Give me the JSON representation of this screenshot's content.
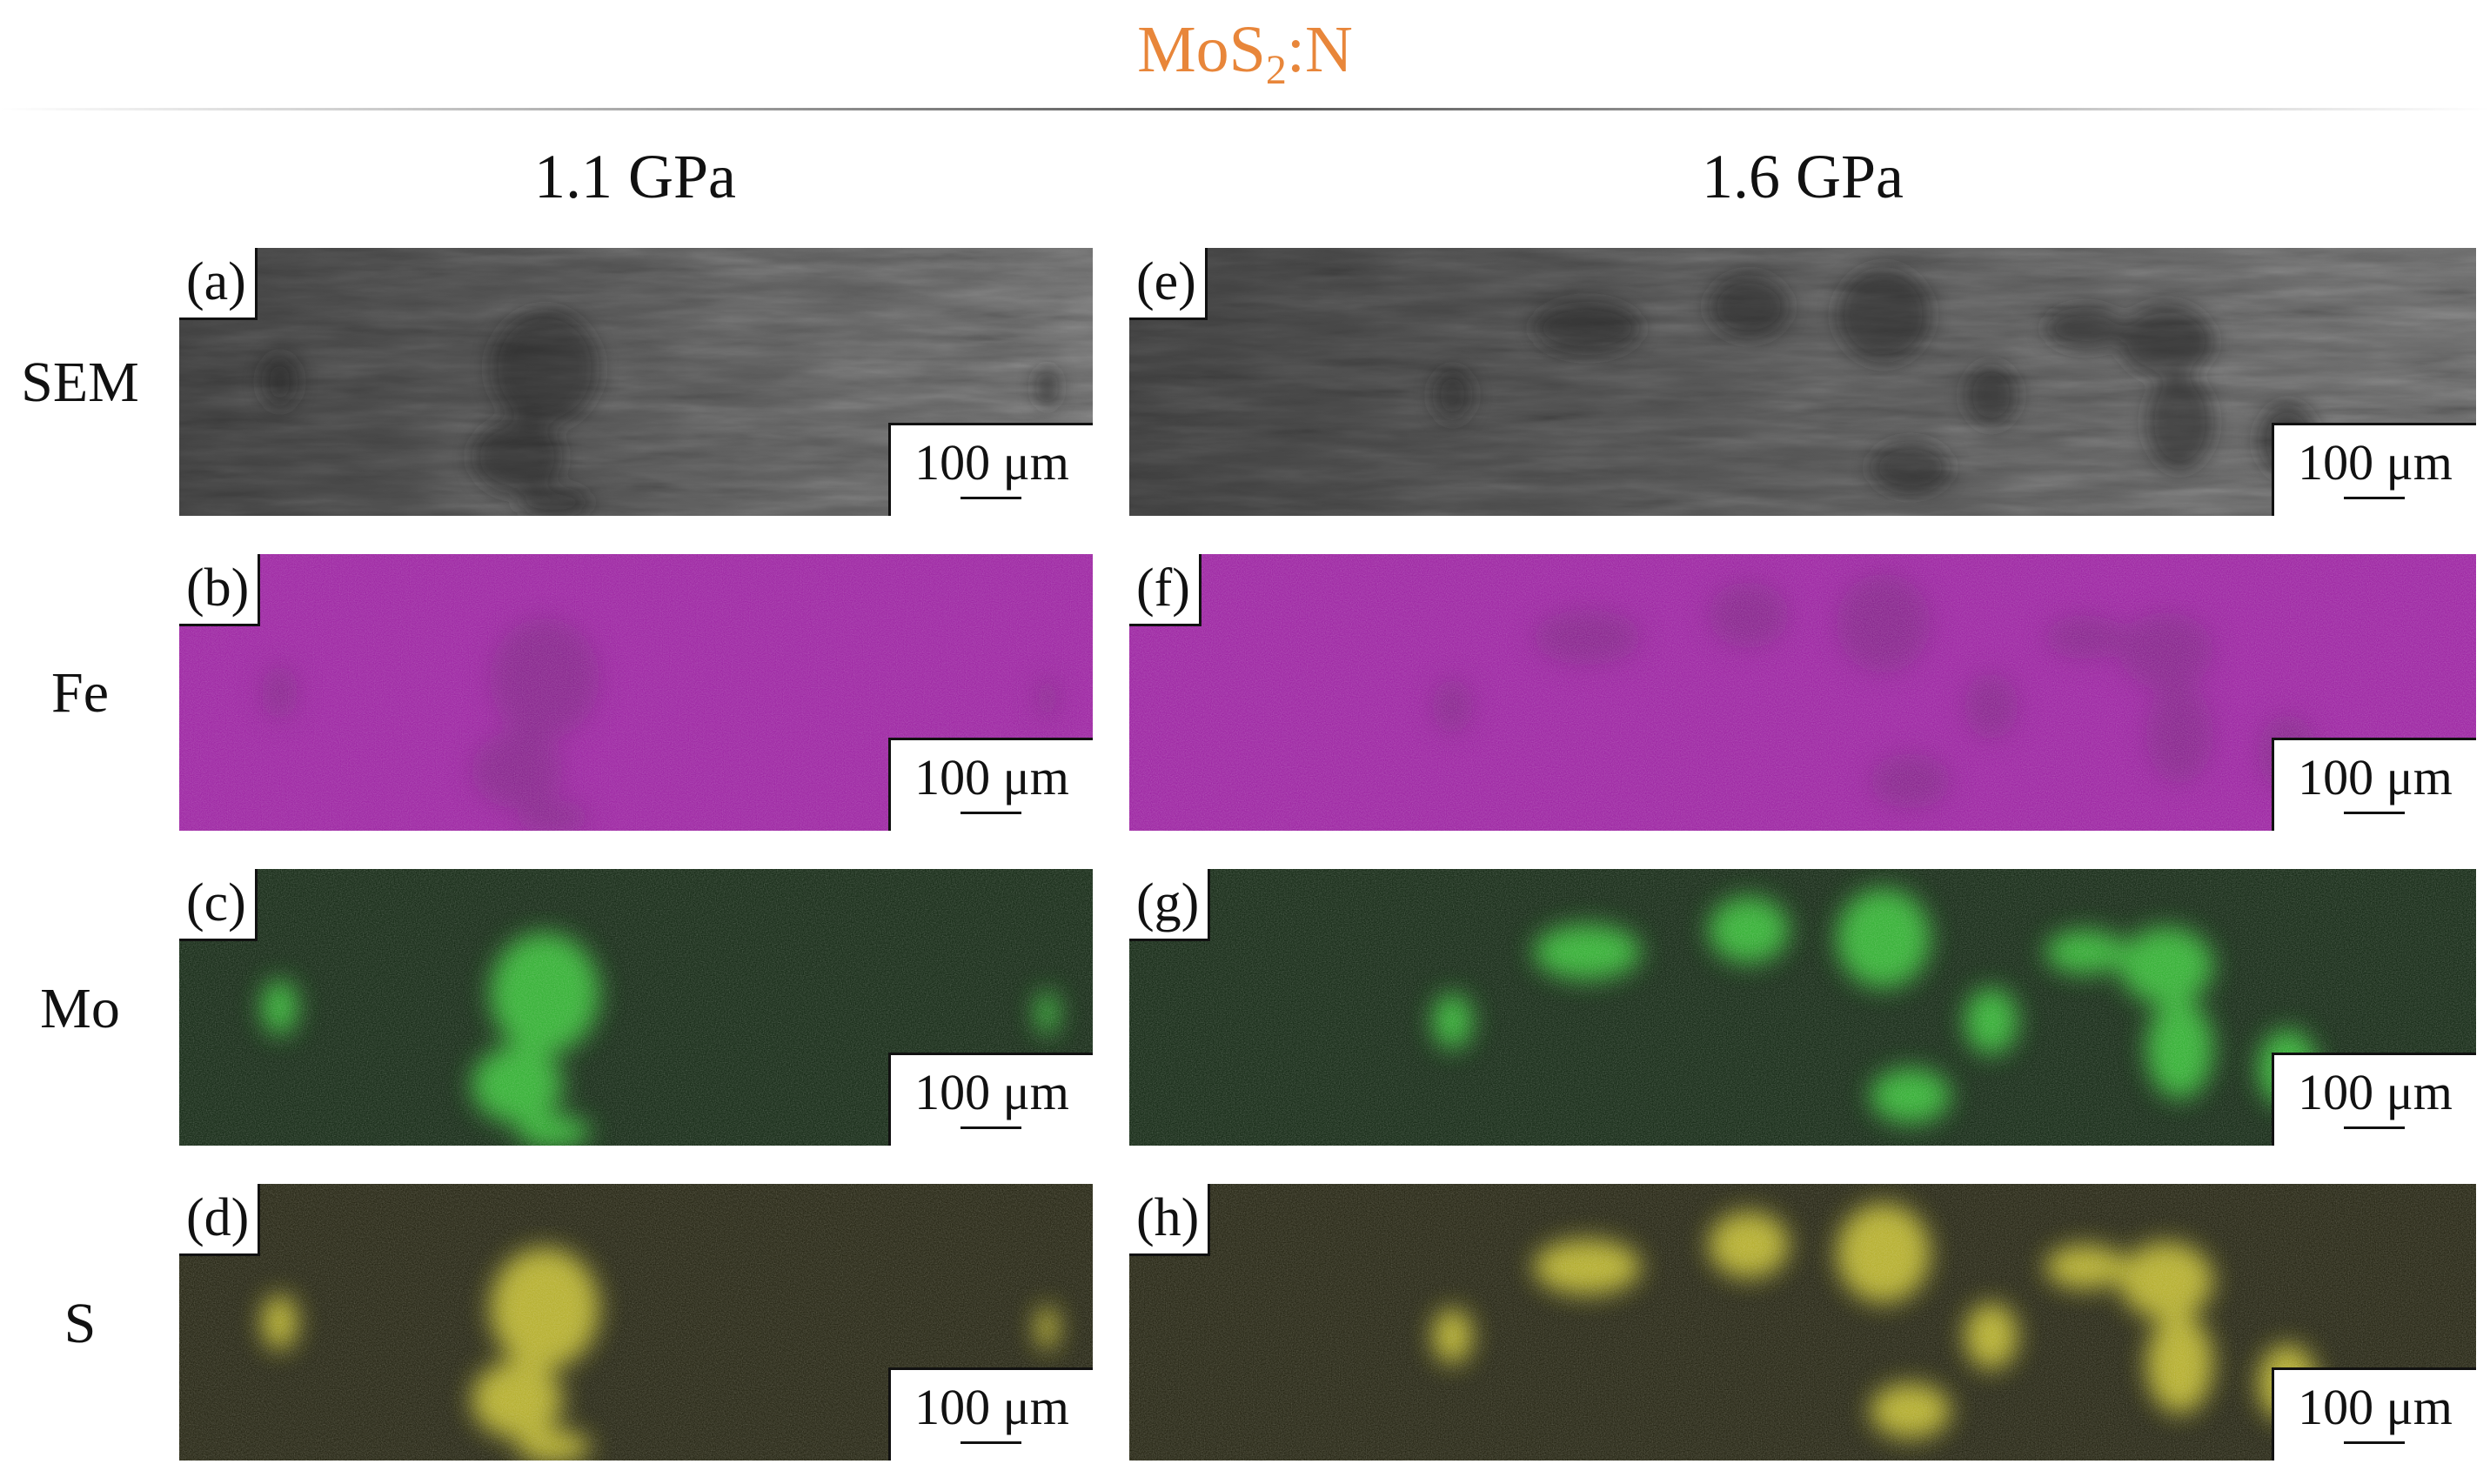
{
  "figure": {
    "title_main": "MoS",
    "title_sub": "2",
    "title_tail": ":N",
    "title_color": "#E8863A",
    "columns": [
      "1.1 GPa",
      "1.6 GPa"
    ],
    "rows": [
      "SEM",
      "Fe",
      "Mo",
      "S"
    ],
    "scale_label": "100 μm",
    "panels": [
      {
        "id": "a",
        "label": "(a)",
        "row": 0,
        "col": 0,
        "kind": "sem",
        "color": "#5a5a5a"
      },
      {
        "id": "b",
        "label": "(b)",
        "row": 1,
        "col": 0,
        "kind": "fe",
        "color": "#A61FA8"
      },
      {
        "id": "c",
        "label": "(c)",
        "row": 2,
        "col": 0,
        "kind": "mo",
        "color": "#2BB52B"
      },
      {
        "id": "d",
        "label": "(d)",
        "row": 3,
        "col": 0,
        "kind": "s",
        "color": "#B9B323"
      },
      {
        "id": "e",
        "label": "(e)",
        "row": 0,
        "col": 1,
        "kind": "sem",
        "color": "#5a5a5a"
      },
      {
        "id": "f",
        "label": "(f)",
        "row": 1,
        "col": 1,
        "kind": "fe",
        "color": "#A61FA8"
      },
      {
        "id": "g",
        "label": "(g)",
        "row": 2,
        "col": 1,
        "kind": "mo",
        "color": "#2BB52B"
      },
      {
        "id": "h",
        "label": "(h)",
        "row": 3,
        "col": 1,
        "kind": "s",
        "color": "#B9B323"
      }
    ]
  }
}
